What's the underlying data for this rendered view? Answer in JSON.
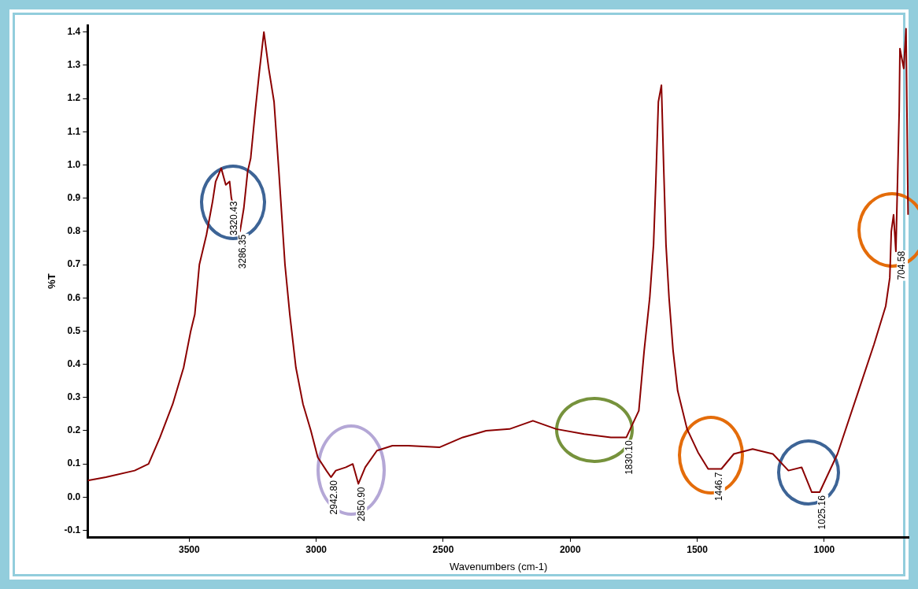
{
  "chart_data": {
    "type": "line",
    "xlabel": "Wavenumbers (cm-1)",
    "ylabel": "%T",
    "xlim": [
      3900,
      665
    ],
    "xticks": [
      3500,
      3000,
      2500,
      2000,
      1500,
      1000
    ],
    "ylim": [
      -0.12,
      1.42
    ],
    "yticks": [
      -0.1,
      {
        "value": 0,
        "label": "0.0"
      },
      0.1,
      0.2,
      0.3,
      0.4,
      0.5,
      0.6,
      0.7,
      0.8,
      0.9,
      {
        "value": 1,
        "label": "1.0"
      },
      1.1,
      1.2,
      1.3,
      1.4
    ],
    "grid": false,
    "legend": false,
    "marker": "none",
    "line_style": "solid",
    "series": [
      {
        "color": "#8b0000",
        "x": [
          3900,
          3828,
          3715,
          3660,
          3615,
          3565,
          3522,
          3494,
          3478,
          3460,
          3432,
          3408,
          3396,
          3374,
          3356,
          3341,
          3334,
          3300,
          3285,
          3270,
          3258,
          3239,
          3224,
          3206,
          3187,
          3166,
          3147,
          3123,
          3104,
          3080,
          3052,
          3021,
          2994,
          2960,
          2942,
          2923,
          2883,
          2856,
          2834,
          2807,
          2761,
          2700,
          2638,
          2515,
          2423,
          2331,
          2239,
          2147,
          2055,
          1945,
          1840,
          1779,
          1730,
          1709,
          1687,
          1672,
          1663,
          1653,
          1641,
          1632,
          1623,
          1611,
          1595,
          1577,
          1540,
          1497,
          1457,
          1405,
          1356,
          1282,
          1202,
          1141,
          1089,
          1049,
          1018,
          948,
          865,
          804,
          758,
          742,
          736,
          727,
          718,
          705,
          702,
          687,
          678,
          670
        ],
        "values": [
          0.05,
          0.06,
          0.08,
          0.1,
          0.18,
          0.28,
          0.39,
          0.5,
          0.55,
          0.7,
          0.79,
          0.89,
          0.95,
          0.99,
          0.94,
          0.95,
          0.9,
          0.8,
          0.87,
          0.98,
          1.02,
          1.17,
          1.28,
          1.4,
          1.29,
          1.19,
          0.98,
          0.7,
          0.55,
          0.39,
          0.28,
          0.2,
          0.12,
          0.08,
          0.06,
          0.08,
          0.09,
          0.1,
          0.04,
          0.09,
          0.14,
          0.155,
          0.155,
          0.15,
          0.18,
          0.2,
          0.205,
          0.23,
          0.205,
          0.19,
          0.18,
          0.18,
          0.26,
          0.44,
          0.6,
          0.76,
          0.95,
          1.19,
          1.24,
          0.99,
          0.76,
          0.6,
          0.44,
          0.32,
          0.205,
          0.135,
          0.085,
          0.085,
          0.13,
          0.145,
          0.13,
          0.08,
          0.09,
          0.015,
          0.015,
          0.13,
          0.32,
          0.46,
          0.575,
          0.66,
          0.8,
          0.85,
          0.74,
          1.16,
          1.35,
          1.29,
          1.41,
          0.85
        ]
      }
    ],
    "annotations": [
      {
        "text": "3320.43",
        "x": 3334,
        "y": 0.9
      },
      {
        "text": "3286.35",
        "x": 3300,
        "y": 0.8
      },
      {
        "text": "2942.80",
        "x": 2942,
        "y": 0.06
      },
      {
        "text": "2850.90",
        "x": 2834,
        "y": 0.04
      },
      {
        "text": "1830.10",
        "x": 1779,
        "y": 0.18
      },
      {
        "text": "1446.7",
        "x": 1425,
        "y": 0.085
      },
      {
        "text": "1025.16",
        "x": 1018,
        "y": 0.015
      },
      {
        "text": "704.58",
        "x": 705,
        "y": 0.75
      }
    ]
  }
}
